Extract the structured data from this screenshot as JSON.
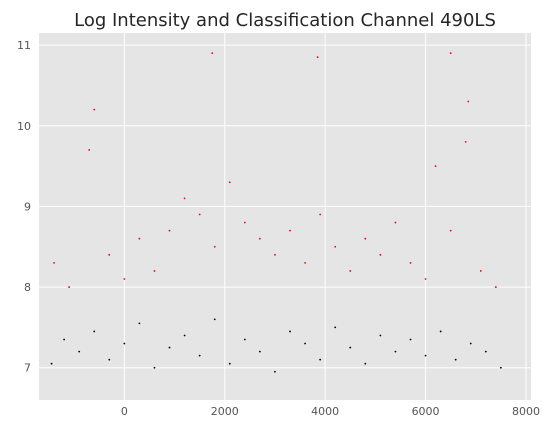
{
  "chart_data": {
    "type": "scatter",
    "title": "Log Intensity and Classification Channel 490LS",
    "xlabel": "",
    "ylabel": "",
    "xlim": [
      -1700,
      8100
    ],
    "ylim": [
      6.6,
      11.15
    ],
    "x_ticks": [
      0,
      2000,
      4000,
      6000,
      8000
    ],
    "x_tick_labels": [
      "0",
      "2000",
      "4000",
      "6000",
      "8000"
    ],
    "y_ticks": [
      7,
      8,
      9,
      10,
      11
    ],
    "y_tick_labels": [
      "7",
      "8",
      "9",
      "10",
      "11"
    ],
    "grid": true,
    "legend": "none",
    "threshold": 7.78,
    "series": [
      {
        "class": "below threshold",
        "color": "#000000",
        "x_range": [
          -1500,
          7650
        ],
        "y_range": [
          6.8,
          7.78
        ],
        "points": [
          [
            -1450,
            7.05
          ],
          [
            -1200,
            7.35
          ],
          [
            -900,
            7.2
          ],
          [
            -600,
            7.45
          ],
          [
            -300,
            7.1
          ],
          [
            0,
            7.3
          ],
          [
            300,
            7.55
          ],
          [
            600,
            7.0
          ],
          [
            900,
            7.25
          ],
          [
            1200,
            7.4
          ],
          [
            1500,
            7.15
          ],
          [
            1800,
            7.6
          ],
          [
            2100,
            7.05
          ],
          [
            2400,
            7.35
          ],
          [
            2700,
            7.2
          ],
          [
            3000,
            6.95
          ],
          [
            3300,
            7.45
          ],
          [
            3600,
            7.3
          ],
          [
            3900,
            7.1
          ],
          [
            4200,
            7.5
          ],
          [
            4500,
            7.25
          ],
          [
            4800,
            7.05
          ],
          [
            5100,
            7.4
          ],
          [
            5400,
            7.2
          ],
          [
            5700,
            7.35
          ],
          [
            6000,
            7.15
          ],
          [
            6300,
            7.45
          ],
          [
            6600,
            7.1
          ],
          [
            6900,
            7.3
          ],
          [
            7200,
            7.2
          ],
          [
            7500,
            7.0
          ]
        ]
      },
      {
        "class": "above threshold",
        "color": "#ff0000",
        "x_range": [
          -1450,
          7600
        ],
        "y_range": [
          7.78,
          10.95
        ],
        "points": [
          [
            -1400,
            8.3
          ],
          [
            -1100,
            8.0
          ],
          [
            -700,
            9.7
          ],
          [
            -600,
            10.2
          ],
          [
            -300,
            8.4
          ],
          [
            0,
            8.1
          ],
          [
            300,
            8.6
          ],
          [
            600,
            8.2
          ],
          [
            900,
            8.7
          ],
          [
            1200,
            9.1
          ],
          [
            1500,
            8.9
          ],
          [
            1800,
            8.5
          ],
          [
            2100,
            9.3
          ],
          [
            2400,
            8.8
          ],
          [
            2700,
            8.6
          ],
          [
            3000,
            8.4
          ],
          [
            3300,
            8.7
          ],
          [
            3600,
            8.3
          ],
          [
            3900,
            8.9
          ],
          [
            4200,
            8.5
          ],
          [
            4500,
            8.2
          ],
          [
            4800,
            8.6
          ],
          [
            5100,
            8.4
          ],
          [
            5400,
            8.8
          ],
          [
            5700,
            8.3
          ],
          [
            6000,
            8.1
          ],
          [
            6200,
            9.5
          ],
          [
            6500,
            8.7
          ],
          [
            6800,
            9.8
          ],
          [
            6850,
            10.3
          ],
          [
            7100,
            8.2
          ],
          [
            7400,
            8.0
          ],
          [
            6500,
            10.9
          ],
          [
            1750,
            10.9
          ],
          [
            3850,
            10.85
          ]
        ]
      }
    ]
  }
}
